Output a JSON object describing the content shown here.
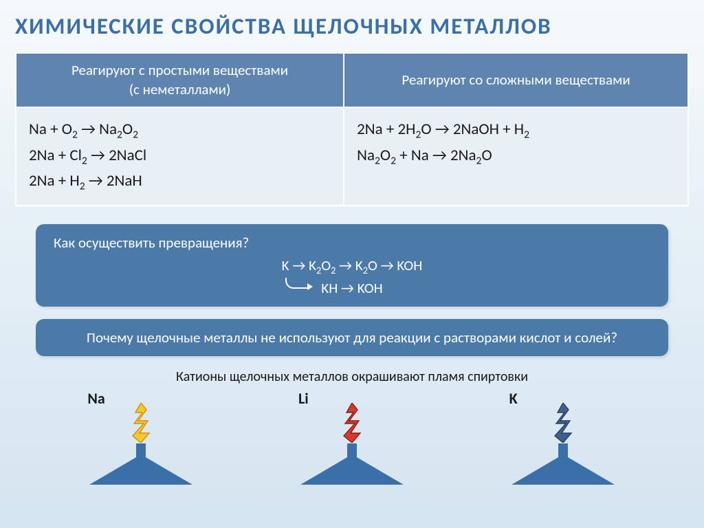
{
  "title": "ХИМИЧЕСКИЕ СВОЙСТВА ЩЕЛОЧНЫХ МЕТАЛЛОВ",
  "table": {
    "header_left_line1": "Реагируют с простыми веществами",
    "header_left_line2": "(с неметаллами)",
    "header_right": "Реагируют со сложными веществами",
    "left_eq1_html": "Na + O<sub class='sub'>2</sub> → Na<sub class='sub'>2</sub>O<sub class='sub'>2</sub>",
    "left_eq2_html": "2Na + Cl<sub class='sub'>2</sub> → 2NaCl",
    "left_eq3_html": "2Na + H<sub class='sub'>2</sub> → 2NaH",
    "right_eq1_html": "2Na + 2H<sub class='sub'>2</sub>O → 2NaOH + H<sub class='sub'>2</sub>",
    "right_eq2_html": "Na<sub class='sub'>2</sub>O<sub class='sub'>2</sub> + Na → 2Na<sub class='sub'>2</sub>O"
  },
  "callout1": {
    "question": "Как осуществить превращения?",
    "line1_html": "K → K<sub class='sub'>2</sub>O<sub class='sub'>2</sub> → K<sub class='sub'>2</sub>O → KOH",
    "line2_html": "KH → KOH"
  },
  "callout2": {
    "text": "Почему щелочные металлы не используют для реакции с растворами кислот и солей?"
  },
  "flames": {
    "caption": "Катионы щелочных металлов окрашивают пламя спиртовки",
    "items": [
      {
        "label": "Na",
        "color": "#f5c926",
        "outline": "#d88a12"
      },
      {
        "label": "Li",
        "color": "#d43a2e",
        "outline": "#8a1f18"
      },
      {
        "label": "K",
        "color": "#3f5f8f",
        "outline": "#2a3f60"
      }
    ],
    "burner_color": "#3a6fa8",
    "burner_base_height": 44
  },
  "colors": {
    "title": "#3a6fa8",
    "table_header_bg": "#5e85b0",
    "table_cell_bg": "#e8eff5",
    "callout_bg": "#4b79a8",
    "text_dark": "#1a1a1a"
  }
}
